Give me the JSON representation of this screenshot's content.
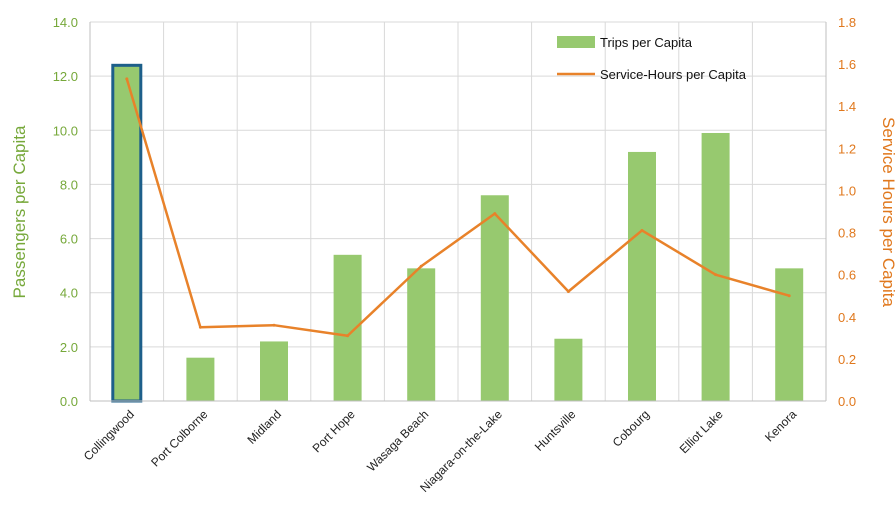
{
  "chart_data": {
    "type": "bar+line",
    "categories": [
      "Collingwood",
      "Port Colborne",
      "Midland",
      "Port Hope",
      "Wasaga Beach",
      "Niagara-on-the-Lake",
      "Huntsville",
      "Cobourg",
      "Elliot Lake",
      "Kenora"
    ],
    "series": [
      {
        "name": "Trips per Capita",
        "type": "bar",
        "axis": "left",
        "color": "#97c96f",
        "highlight": {
          "index": 0,
          "outline_color": "#1d5f8a"
        },
        "values": [
          12.4,
          1.6,
          2.2,
          5.4,
          4.9,
          7.6,
          2.3,
          9.2,
          9.9,
          4.9
        ]
      },
      {
        "name": "Service-Hours per Capita",
        "type": "line",
        "axis": "right",
        "color": "#e8822a",
        "values": [
          1.53,
          0.35,
          0.36,
          0.31,
          0.64,
          0.89,
          0.52,
          0.81,
          0.6,
          0.5
        ]
      }
    ],
    "left_axis": {
      "label": "Passengers per Capita",
      "ylim": [
        0,
        14
      ],
      "ticks": [
        "0.0",
        "2.0",
        "4.0",
        "6.0",
        "8.0",
        "10.0",
        "12.0",
        "14.0"
      ],
      "color": "#76a83a"
    },
    "right_axis": {
      "label": "Service Hours per Capita",
      "ylim": [
        0,
        1.8
      ],
      "ticks": [
        "0.0",
        "0.2",
        "0.4",
        "0.6",
        "0.8",
        "1.0",
        "1.2",
        "1.4",
        "1.6",
        "1.8"
      ],
      "color": "#e0781d"
    },
    "grid": true,
    "legend_position": "top-right"
  }
}
